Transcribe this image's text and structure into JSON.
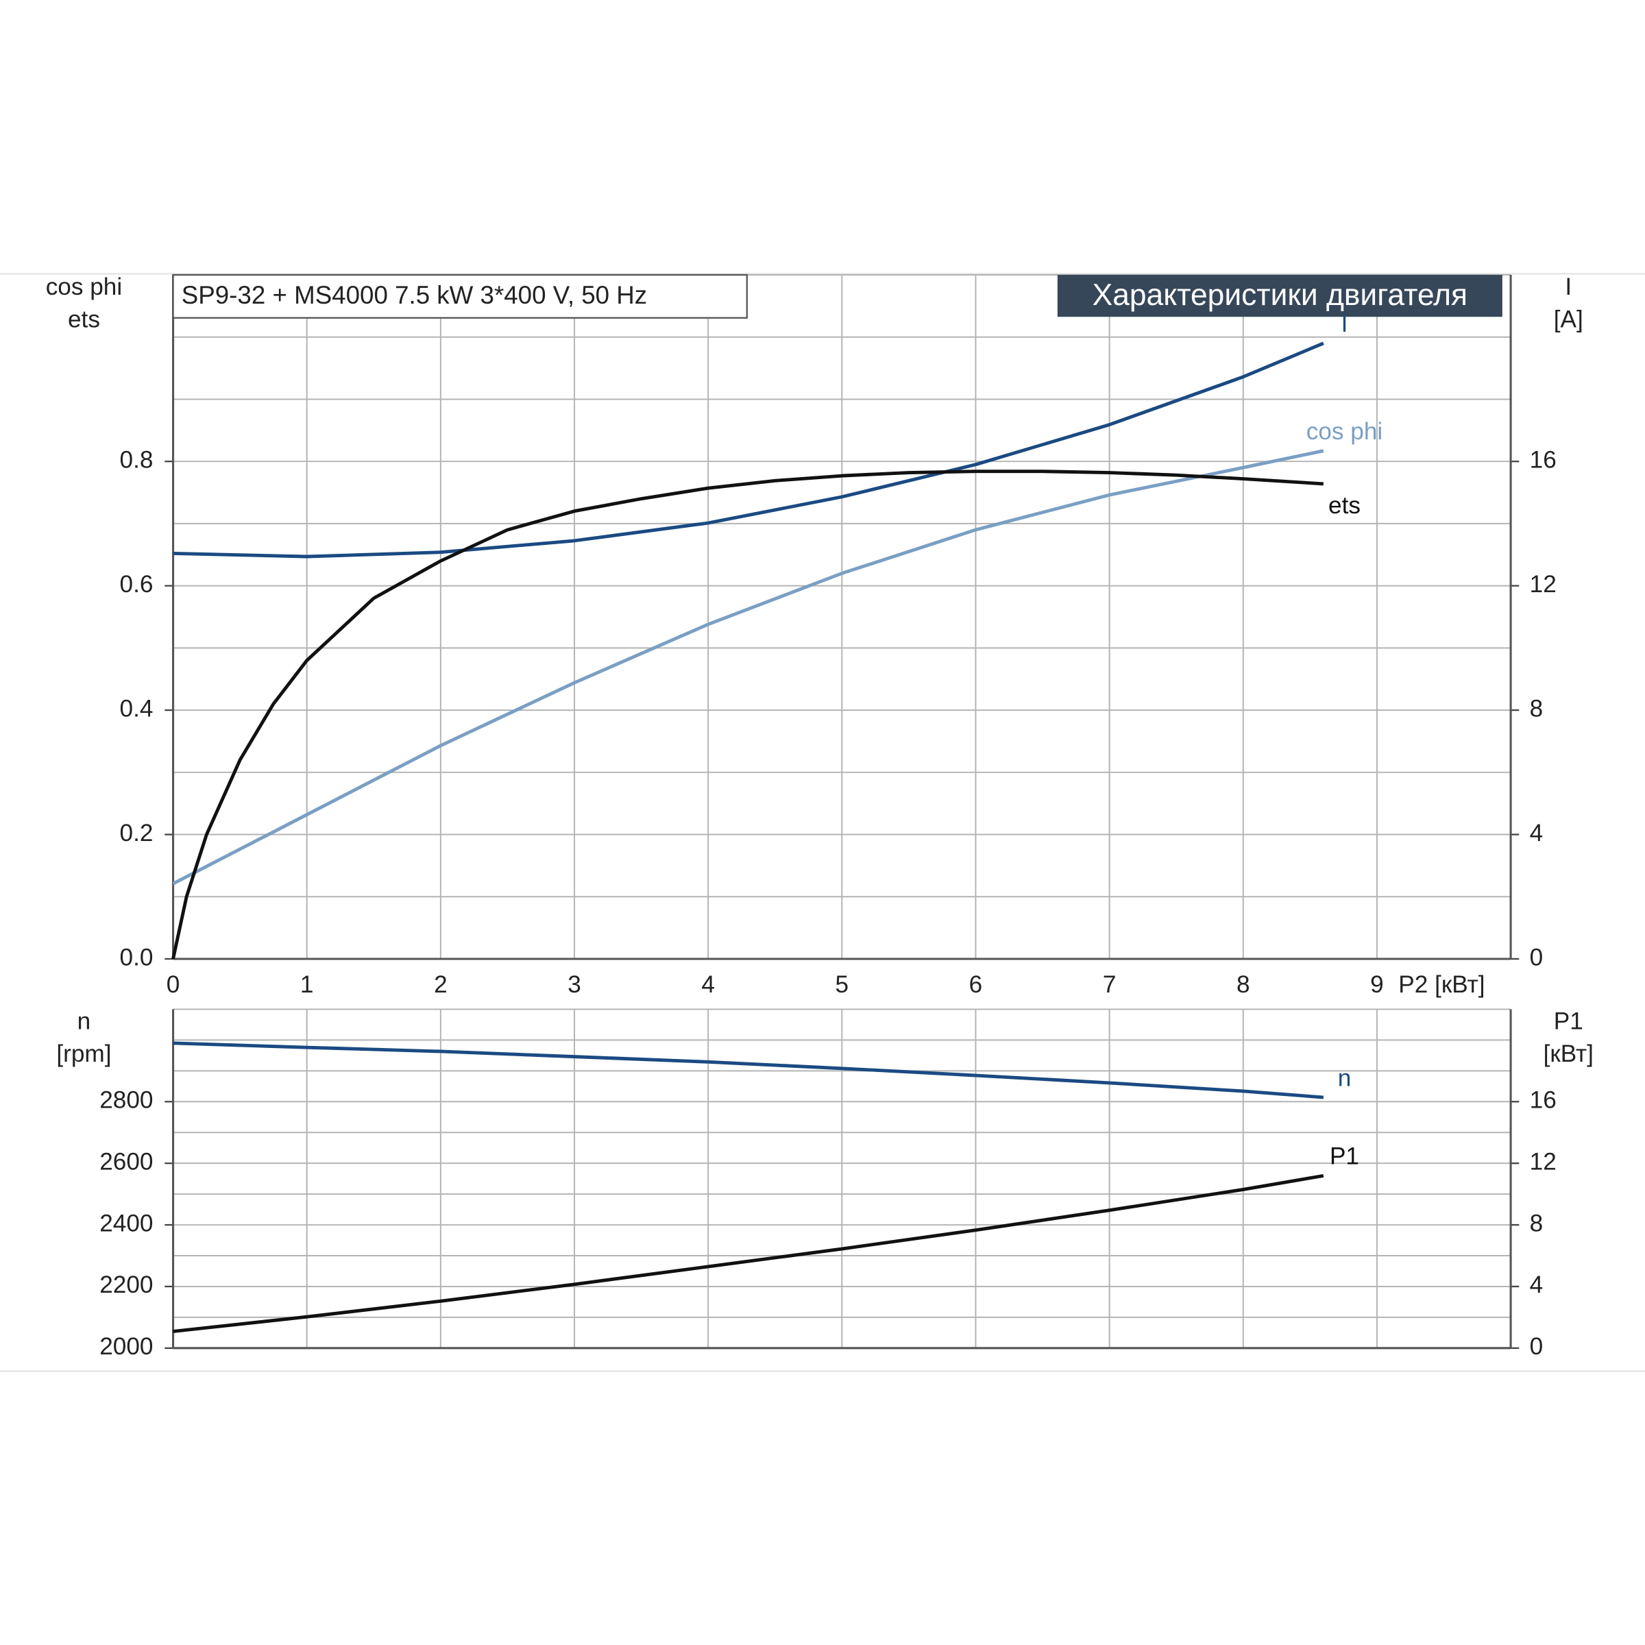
{
  "chart_data": [
    {
      "type": "line",
      "title": "SP9-32 + MS4000   7.5 kW   3*400 V, 50 Hz",
      "header": "Характеристики двигателя",
      "x_label": "P2 [кВт]",
      "y_label": [
        "cos phi",
        "ets"
      ],
      "y2_label": [
        "I",
        "[A]"
      ],
      "xlim": [
        0,
        10
      ],
      "xticks": [
        0,
        1,
        2,
        3,
        4,
        5,
        6,
        7,
        8,
        9
      ],
      "ylim": [
        0,
        1.1
      ],
      "yticks": [
        {
          "value": 0,
          "label": "0.0"
        },
        0.2,
        0.4,
        0.6,
        0.8
      ],
      "yminor": [
        0.1,
        0.3,
        0.5,
        0.7,
        0.9,
        1.0
      ],
      "y2lim": [
        0,
        22
      ],
      "y2ticks": [
        0,
        4,
        8,
        12,
        16
      ],
      "grid": true,
      "series": [
        {
          "name": "I",
          "color": "#1b4a82",
          "axis": "y2",
          "x": [
            0,
            1,
            2,
            3,
            4,
            5,
            6,
            7,
            8,
            8.6
          ],
          "values": [
            13.04,
            12.94,
            13.08,
            13.45,
            14.02,
            14.86,
            15.9,
            17.18,
            18.72,
            19.8
          ]
        },
        {
          "name": "cos phi",
          "color": "#7a9fc4",
          "x": [
            0,
            1,
            2,
            3,
            4,
            5,
            6,
            7,
            8,
            8.6
          ],
          "values": [
            0.121,
            0.232,
            0.343,
            0.444,
            0.538,
            0.62,
            0.69,
            0.746,
            0.79,
            0.817
          ]
        },
        {
          "name": "ets",
          "color": "#111111",
          "x": [
            0,
            0.1,
            0.25,
            0.5,
            0.75,
            1,
            1.5,
            2,
            2.5,
            3,
            3.5,
            4,
            4.5,
            5,
            5.5,
            6,
            6.5,
            7,
            7.5,
            8,
            8.6
          ],
          "values": [
            0,
            0.1,
            0.2,
            0.32,
            0.41,
            0.48,
            0.58,
            0.64,
            0.69,
            0.72,
            0.74,
            0.757,
            0.769,
            0.777,
            0.782,
            0.784,
            0.784,
            0.782,
            0.778,
            0.772,
            0.764
          ]
        }
      ]
    },
    {
      "type": "line",
      "y_label": [
        "n",
        "[rpm]"
      ],
      "y2_label": [
        "P1",
        "[кВт]"
      ],
      "xlim": [
        0,
        10
      ],
      "xgrid": [
        1,
        2,
        3,
        4,
        5,
        6,
        7,
        8,
        9
      ],
      "ylim": [
        2000,
        3100
      ],
      "yticks": [
        2000,
        2200,
        2400,
        2600,
        2800
      ],
      "yminor": [
        2100,
        2300,
        2500,
        2700,
        2900,
        3000
      ],
      "y2lim": [
        0,
        22
      ],
      "y2ticks": [
        0,
        4,
        8,
        12,
        16
      ],
      "grid": true,
      "series": [
        {
          "name": "n",
          "color": "#1b4a82",
          "x": [
            0,
            1,
            2,
            3,
            4,
            5,
            6,
            7,
            8,
            8.6
          ],
          "values": [
            2990,
            2976,
            2963,
            2946,
            2929,
            2908,
            2885,
            2861,
            2834,
            2814
          ]
        },
        {
          "name": "P1",
          "color": "#111111",
          "axis": "y2",
          "x": [
            0,
            1,
            2,
            3,
            4,
            5,
            6,
            7,
            8,
            8.6
          ],
          "values": [
            1.08,
            2.03,
            3.05,
            4.14,
            5.29,
            6.44,
            7.66,
            8.95,
            10.3,
            11.19
          ]
        }
      ]
    }
  ]
}
